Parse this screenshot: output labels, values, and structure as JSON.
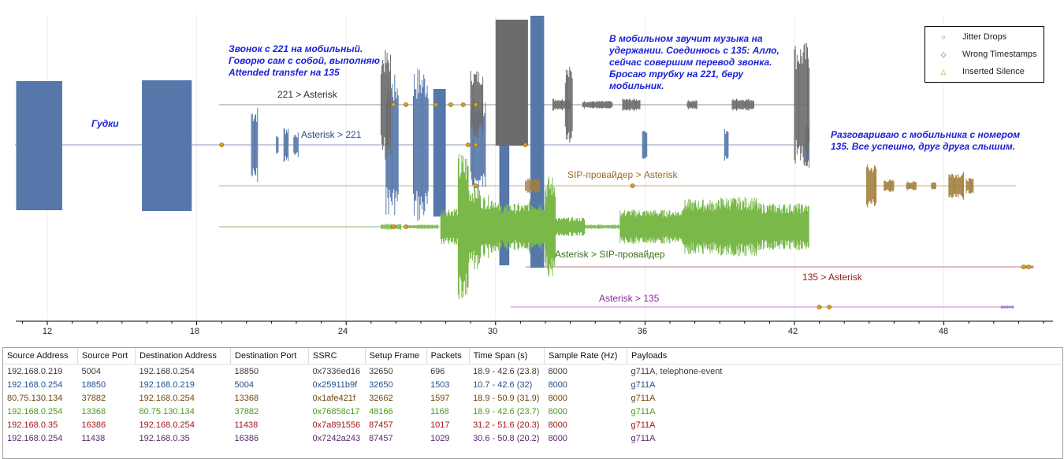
{
  "graph": {
    "x_axis_ticks": [
      "12",
      "18",
      "24",
      "30",
      "36",
      "42",
      "48"
    ],
    "streams": [
      {
        "label": "221 > Asterisk",
        "color": "#404040",
        "wave_color": "#6b6b6b"
      },
      {
        "label": "Asterisk > 221",
        "color": "#2a4b8a",
        "wave_color": "#5577aa"
      },
      {
        "label": "SIP-провайдер > Asterisk",
        "color": "#9a6a1f",
        "wave_color": "#a3803f"
      },
      {
        "label": "Asterisk > SIP-провайдер",
        "color": "#3d6e1e",
        "wave_color": "#7ab84a"
      },
      {
        "label": "135 > Asterisk",
        "color": "#8c1a1a",
        "wave_color": "#c07070"
      },
      {
        "label": "Asterisk > 135",
        "color": "#8a2aa0",
        "wave_color": "#a070c0"
      }
    ],
    "legend": [
      {
        "label": "Jitter Drops",
        "icon": "circle-icon",
        "color": "#cc2222"
      },
      {
        "label": "Wrong Timestamps",
        "icon": "diamond-icon",
        "color": "#2255cc"
      },
      {
        "label": "Inserted Silence",
        "icon": "triangle-icon",
        "color": "#cc8800"
      }
    ],
    "annotations": {
      "gudki": "Гудки",
      "call": [
        "Звонок с 221 на мобильный.",
        "Говорю сам с собой, выполняю",
        "Attended transfer на 135"
      ],
      "hold": [
        "В мобильном звучит музыка на",
        "удержании. Соединюсь с 135: Алло,",
        "сейчас совершим перевод звонка.",
        "Бросаю трубку на 221, беру",
        "мобильник."
      ],
      "talk": [
        "Разговариваю с мобильника с номером",
        "135. Все успешно, друг друга слышим."
      ]
    }
  },
  "table": {
    "columns": [
      "Source Address",
      "Source Port",
      "Destination Address",
      "Destination Port",
      "SSRC",
      "Setup Frame",
      "Packets",
      "Time Span (s)",
      "Sample Rate (Hz)",
      "Payloads"
    ],
    "rows": [
      {
        "color": "#3a3a3a",
        "cells": [
          "192.168.0.219",
          "5004",
          "192.168.0.254",
          "18850",
          "0x7336ed16",
          "32650",
          "696",
          "18.9 - 42.6 (23.8)",
          "8000",
          "g711A, telephone-event"
        ]
      },
      {
        "color": "#1f4f8f",
        "cells": [
          "192.168.0.254",
          "18850",
          "192.168.0.219",
          "5004",
          "0x25911b9f",
          "32650",
          "1503",
          "10.7 - 42.6 (32)",
          "8000",
          "g711A"
        ]
      },
      {
        "color": "#6b4a10",
        "cells": [
          "80.75.130.134",
          "37882",
          "192.168.0.254",
          "13368",
          "0x1afe421f",
          "32662",
          "1597",
          "18.9 - 50.9 (31.9)",
          "8000",
          "g711A"
        ]
      },
      {
        "color": "#4c9a1e",
        "cells": [
          "192.168.0.254",
          "13368",
          "80.75.130.134",
          "37882",
          "0x76858c17",
          "48166",
          "1168",
          "18.9 - 42.6 (23.7)",
          "8000",
          "g711A"
        ]
      },
      {
        "color": "#a01818",
        "cells": [
          "192.168.0.35",
          "16386",
          "192.168.0.254",
          "11438",
          "0x7a891556",
          "87457",
          "1017",
          "31.2 - 51.6 (20.3)",
          "8000",
          "g711A"
        ]
      },
      {
        "color": "#5a2a6a",
        "cells": [
          "192.168.0.254",
          "11438",
          "192.168.0.35",
          "16386",
          "0x7242a243",
          "87457",
          "1029",
          "30.6 - 50.8 (20.2)",
          "8000",
          "g711A"
        ]
      }
    ]
  }
}
